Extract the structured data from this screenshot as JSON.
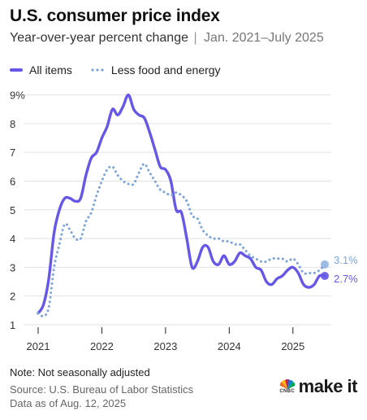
{
  "header": {
    "title": "U.S. consumer price index",
    "subtitle_main": "Year-over-year percent change",
    "subtitle_sep": "|",
    "subtitle_range": "Jan. 2021–July 2025"
  },
  "legend": {
    "all_items": "All items",
    "core": "Less food and energy"
  },
  "footer": {
    "note": "Note: Not seasonally adjusted",
    "source": "Source: U.S. Bureau of Labor Statistics",
    "data_as_of": "Data as of Aug. 12, 2025"
  },
  "logo": {
    "brand": "make it",
    "network": "CNBC"
  },
  "colors": {
    "all_items": "#6657e8",
    "core": "#7ba4dc",
    "grid": "#e2e2e2"
  },
  "chart_data": {
    "type": "line",
    "title": "U.S. consumer price index",
    "subtitle": "Year-over-year percent change | Jan. 2021–July 2025",
    "xlabel": "",
    "ylabel": "",
    "y_tick_labels": [
      "1",
      "2",
      "3",
      "4",
      "5",
      "6",
      "7",
      "8",
      "9%"
    ],
    "y_ticks": [
      1,
      2,
      3,
      4,
      5,
      6,
      7,
      8,
      9
    ],
    "ylim": [
      0.8,
      9.3
    ],
    "x_tick_labels": [
      "2021",
      "2022",
      "2023",
      "2024",
      "2025"
    ],
    "x_ticks": [
      "2021-01",
      "2022-01",
      "2023-01",
      "2024-01",
      "2025-01"
    ],
    "xlim": [
      "2021-01",
      "2025-07"
    ],
    "grid": "horizontal",
    "legend_position": "top-left",
    "x": [
      "2021-01",
      "2021-02",
      "2021-03",
      "2021-04",
      "2021-05",
      "2021-06",
      "2021-07",
      "2021-08",
      "2021-09",
      "2021-10",
      "2021-11",
      "2021-12",
      "2022-01",
      "2022-02",
      "2022-03",
      "2022-04",
      "2022-05",
      "2022-06",
      "2022-07",
      "2022-08",
      "2022-09",
      "2022-10",
      "2022-11",
      "2022-12",
      "2023-01",
      "2023-02",
      "2023-03",
      "2023-04",
      "2023-05",
      "2023-06",
      "2023-07",
      "2023-08",
      "2023-09",
      "2023-10",
      "2023-11",
      "2023-12",
      "2024-01",
      "2024-02",
      "2024-03",
      "2024-04",
      "2024-05",
      "2024-06",
      "2024-07",
      "2024-08",
      "2024-09",
      "2024-10",
      "2024-11",
      "2024-12",
      "2025-01",
      "2025-02",
      "2025-03",
      "2025-04",
      "2025-05",
      "2025-06",
      "2025-07"
    ],
    "series": [
      {
        "name": "All items",
        "style": "solid",
        "end_label": "2.7%",
        "values": [
          1.4,
          1.7,
          2.6,
          4.2,
          5.0,
          5.4,
          5.4,
          5.3,
          5.4,
          6.2,
          6.8,
          7.0,
          7.5,
          7.9,
          8.5,
          8.3,
          8.6,
          9.0,
          8.5,
          8.3,
          8.2,
          7.7,
          7.1,
          6.5,
          6.4,
          6.0,
          5.0,
          4.9,
          4.0,
          3.0,
          3.2,
          3.7,
          3.7,
          3.2,
          3.1,
          3.4,
          3.1,
          3.2,
          3.5,
          3.4,
          3.3,
          3.0,
          2.9,
          2.5,
          2.4,
          2.6,
          2.7,
          2.9,
          3.0,
          2.8,
          2.4,
          2.3,
          2.4,
          2.7,
          2.7
        ]
      },
      {
        "name": "Less food and energy",
        "style": "dotted",
        "end_label": "3.1%",
        "values": [
          1.4,
          1.3,
          1.6,
          3.0,
          3.8,
          4.5,
          4.3,
          4.0,
          4.0,
          4.6,
          4.9,
          5.5,
          6.0,
          6.4,
          6.5,
          6.2,
          6.0,
          5.9,
          5.9,
          6.3,
          6.6,
          6.3,
          6.0,
          5.7,
          5.6,
          5.5,
          5.6,
          5.5,
          5.3,
          4.8,
          4.7,
          4.3,
          4.1,
          4.0,
          4.0,
          3.9,
          3.9,
          3.8,
          3.8,
          3.6,
          3.4,
          3.3,
          3.2,
          3.2,
          3.3,
          3.3,
          3.3,
          3.2,
          3.3,
          3.1,
          2.8,
          2.8,
          2.8,
          2.9,
          3.1
        ]
      }
    ]
  }
}
